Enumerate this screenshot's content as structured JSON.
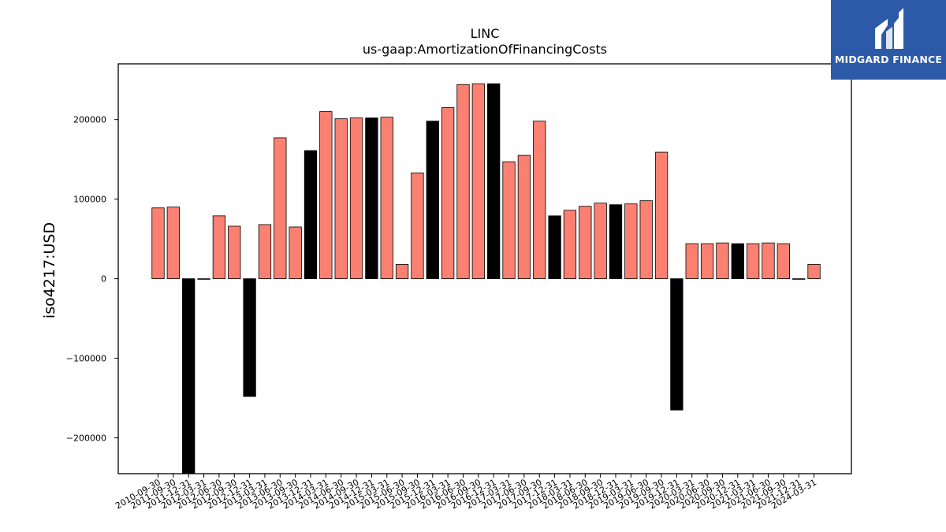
{
  "chart_data": {
    "type": "bar",
    "title": "LINC",
    "subtitle": "us-gaap:AmortizationOfFinancingCosts",
    "xlabel": "",
    "ylabel": "iso4217:USD",
    "ylim": [
      -245000,
      270000
    ],
    "yticks": [
      -200000,
      -100000,
      0,
      100000,
      200000
    ],
    "ytick_labels": [
      "−200000",
      "−100000",
      "0",
      "100000",
      "200000"
    ],
    "grid": false,
    "categories": [
      "2010-09-30",
      "2011-09-30",
      "2011-12-31",
      "2012-03-31",
      "2012-06-30",
      "2012-09-30",
      "2012-12-31",
      "2013-03-31",
      "2013-06-30",
      "2013-09-30",
      "2013-12-31",
      "2014-03-31",
      "2014-06-30",
      "2014-09-30",
      "2014-12-31",
      "2015-03-31",
      "2015-06-30",
      "2015-09-30",
      "2015-12-31",
      "2016-03-31",
      "2016-06-30",
      "2016-09-30",
      "2016-12-31",
      "2017-03-31",
      "2017-06-30",
      "2017-09-30",
      "2017-12-31",
      "2018-03-31",
      "2018-06-30",
      "2018-09-30",
      "2018-12-31",
      "2019-03-31",
      "2019-06-30",
      "2019-09-30",
      "2019-12-31",
      "2020-03-31",
      "2020-06-30",
      "2020-09-30",
      "2020-12-31",
      "2021-03-31",
      "2021-06-30",
      "2021-09-30",
      "2021-12-31",
      "2024-03-31"
    ],
    "values": [
      89000,
      90000,
      -260000,
      0,
      79000,
      66000,
      -148000,
      68000,
      177000,
      65000,
      161000,
      210000,
      201000,
      202000,
      202000,
      203000,
      18000,
      133000,
      198000,
      215000,
      244000,
      245000,
      245000,
      147000,
      155000,
      198000,
      79000,
      86000,
      91000,
      95000,
      93000,
      94000,
      98000,
      159000,
      -165000,
      44000,
      44000,
      45000,
      44000,
      44000,
      45000,
      44000,
      0,
      18000
    ],
    "bar_colors": [
      "#fa8072",
      "#fa8072",
      "#000000",
      "#000000",
      "#fa8072",
      "#fa8072",
      "#000000",
      "#fa8072",
      "#fa8072",
      "#fa8072",
      "#000000",
      "#fa8072",
      "#fa8072",
      "#fa8072",
      "#000000",
      "#fa8072",
      "#fa8072",
      "#fa8072",
      "#000000",
      "#fa8072",
      "#fa8072",
      "#fa8072",
      "#000000",
      "#fa8072",
      "#fa8072",
      "#fa8072",
      "#000000",
      "#fa8072",
      "#fa8072",
      "#fa8072",
      "#000000",
      "#fa8072",
      "#fa8072",
      "#fa8072",
      "#000000",
      "#fa8072",
      "#fa8072",
      "#fa8072",
      "#000000",
      "#fa8072",
      "#fa8072",
      "#fa8072",
      "#000000",
      "#fa8072"
    ]
  },
  "logo": {
    "text": "MIDGARD FINANCE",
    "background": "#2c5aa8"
  }
}
